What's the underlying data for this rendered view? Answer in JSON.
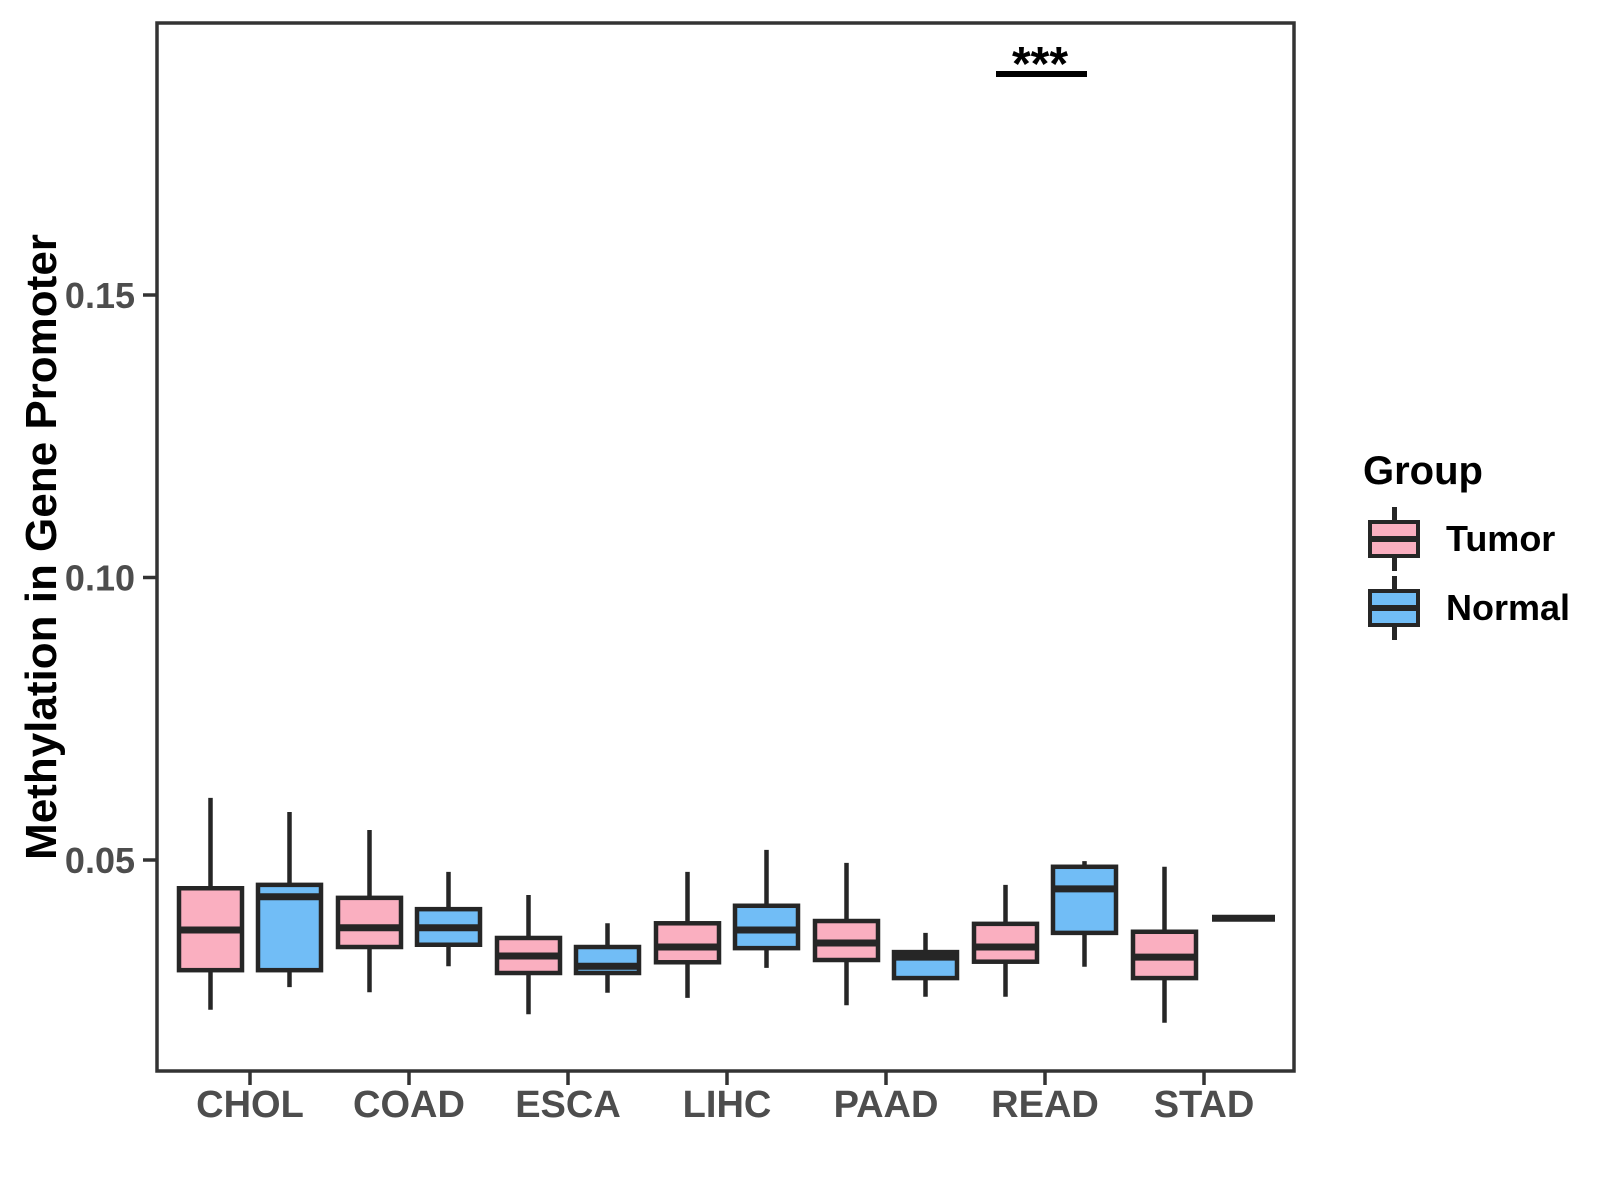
{
  "y_axis": {
    "title": "Methylation in Gene Promoter",
    "ticks": [
      "0.05",
      "0.10",
      "0.15"
    ],
    "tick_values": [
      0.05,
      0.1,
      0.15
    ]
  },
  "legend": {
    "title": "Group",
    "items": [
      {
        "label": "Tumor",
        "color": "#FAAFC0"
      },
      {
        "label": "Normal",
        "color": "#71BDF6"
      }
    ]
  },
  "colors": {
    "tumor_fill": "#FAAFC0",
    "normal_fill": "#71BDF6",
    "box_stroke": "#262626",
    "axis_text": "#4D4D4D",
    "panel_border": "#333333",
    "significance": "#000000"
  },
  "chart_data": {
    "type": "boxplot",
    "title": "",
    "xlabel": "",
    "ylabel": "Methylation in Gene Promoter",
    "categories": [
      "CHOL",
      "COAD",
      "ESCA",
      "LIHC",
      "PAAD",
      "READ",
      "STAD"
    ],
    "groups": [
      "Tumor",
      "Normal"
    ],
    "ylim": [
      0.013,
      0.198
    ],
    "y_ticks": [
      0.05,
      0.1,
      0.15
    ],
    "grid": false,
    "legend_position": "right",
    "series": [
      {
        "name": "Tumor",
        "color": "#FAAFC0",
        "boxes": [
          {
            "category": "CHOL",
            "min": 0.0235,
            "q1": 0.0305,
            "median": 0.0376,
            "q3": 0.045,
            "max": 0.061
          },
          {
            "category": "COAD",
            "min": 0.0266,
            "q1": 0.0346,
            "median": 0.038,
            "q3": 0.0433,
            "max": 0.0553
          },
          {
            "category": "ESCA",
            "min": 0.0227,
            "q1": 0.03,
            "median": 0.033,
            "q3": 0.0362,
            "max": 0.0438
          },
          {
            "category": "LIHC",
            "min": 0.0256,
            "q1": 0.0319,
            "median": 0.0346,
            "q3": 0.0388,
            "max": 0.0479
          },
          {
            "category": "PAAD",
            "min": 0.0243,
            "q1": 0.0323,
            "median": 0.0353,
            "q3": 0.0392,
            "max": 0.0495
          },
          {
            "category": "READ",
            "min": 0.0258,
            "q1": 0.032,
            "median": 0.0346,
            "q3": 0.0387,
            "max": 0.0456
          },
          {
            "category": "STAD",
            "min": 0.0212,
            "q1": 0.0291,
            "median": 0.0328,
            "q3": 0.0373,
            "max": 0.0488
          }
        ]
      },
      {
        "name": "Normal",
        "color": "#71BDF6",
        "boxes": [
          {
            "category": "CHOL",
            "min": 0.0275,
            "q1": 0.0305,
            "median": 0.0435,
            "q3": 0.0456,
            "max": 0.0585
          },
          {
            "category": "COAD",
            "min": 0.0312,
            "q1": 0.035,
            "median": 0.038,
            "q3": 0.0413,
            "max": 0.0479
          },
          {
            "category": "ESCA",
            "min": 0.0265,
            "q1": 0.03,
            "median": 0.0312,
            "q3": 0.0346,
            "max": 0.0388
          },
          {
            "category": "LIHC",
            "min": 0.0309,
            "q1": 0.0344,
            "median": 0.0376,
            "q3": 0.0419,
            "max": 0.0518
          },
          {
            "category": "PAAD",
            "min": 0.0258,
            "q1": 0.0291,
            "median": 0.0328,
            "q3": 0.0337,
            "max": 0.0371
          },
          {
            "category": "READ",
            "min": 0.0311,
            "q1": 0.0371,
            "median": 0.0449,
            "q3": 0.0488,
            "max": 0.0498
          },
          {
            "category": "STAD",
            "min": 0.0397,
            "q1": 0.0397,
            "median": 0.0397,
            "q3": 0.0397,
            "max": 0.0397
          }
        ]
      }
    ],
    "significance": {
      "category": "READ",
      "label": "***",
      "compares": [
        "Tumor",
        "Normal"
      ]
    }
  }
}
